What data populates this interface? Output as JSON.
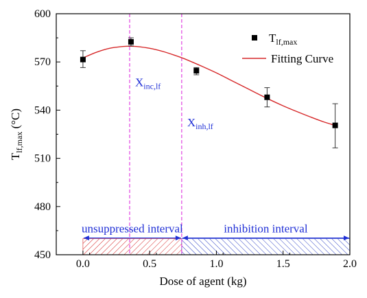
{
  "chart_data": {
    "type": "scatter",
    "xlabel": "Dose of agent (kg)",
    "ylabel": {
      "base": "T",
      "sub": "lf,max",
      "unit": " (°C)"
    },
    "xlim": [
      -0.2,
      2.0
    ],
    "ylim": [
      450,
      600
    ],
    "xticks": [
      0.0,
      0.5,
      1.0,
      1.5,
      2.0
    ],
    "xtick_labels": [
      "0.0",
      "0.5",
      "1.0",
      "1.5",
      "2.0"
    ],
    "yticks": [
      450,
      480,
      510,
      540,
      570,
      600
    ],
    "ytick_labels": [
      "450",
      "480",
      "510",
      "540",
      "570",
      "600"
    ],
    "grid": false,
    "legend_position": "top-right",
    "series": [
      {
        "name": {
          "base": "T",
          "sub": "lf,max"
        },
        "kind": "scatter-with-errorbars",
        "color": "#000000",
        "x": [
          0.0,
          0.36,
          0.85,
          1.38,
          1.89
        ],
        "y": [
          571.5,
          582.5,
          564.5,
          548.0,
          530.5
        ],
        "err_low": [
          5.0,
          2.5,
          2.5,
          6.0,
          14.0
        ],
        "err_high": [
          5.5,
          2.5,
          2.0,
          6.0,
          13.5
        ]
      },
      {
        "name": "Fitting Curve",
        "kind": "line",
        "color": "#d62728",
        "x": [
          0.0,
          0.1,
          0.2,
          0.3,
          0.35,
          0.4,
          0.5,
          0.6,
          0.7,
          0.75,
          0.8,
          0.9,
          1.0,
          1.1,
          1.2,
          1.3,
          1.4,
          1.5,
          1.6,
          1.7,
          1.8,
          1.89
        ],
        "y": [
          572.5,
          576.0,
          578.5,
          579.6,
          579.8,
          579.6,
          578.5,
          576.5,
          573.8,
          572.3,
          570.6,
          567.0,
          563.2,
          559.0,
          554.8,
          550.6,
          546.5,
          542.7,
          539.2,
          535.9,
          532.8,
          530.5
        ]
      }
    ],
    "annotations": {
      "vlines": [
        {
          "x": 0.35,
          "color": "#e040e0",
          "label": {
            "base": "X",
            "sub": "inc,lf"
          },
          "label_y": 555
        },
        {
          "x": 0.74,
          "color": "#e040e0",
          "label": {
            "base": "X",
            "sub": "inh,lf"
          },
          "label_y": 530
        }
      ],
      "intervals": [
        {
          "label": "unsuppressed interval",
          "x_start": 0.0,
          "x_end": 0.74,
          "color": "#d62728"
        },
        {
          "label": "inhibition interval",
          "x_start": 0.74,
          "x_end": 2.0,
          "color": "#2b3fc4"
        }
      ],
      "arrow_color": "#1f2fd6",
      "label_color": "#1f2fd6"
    }
  }
}
